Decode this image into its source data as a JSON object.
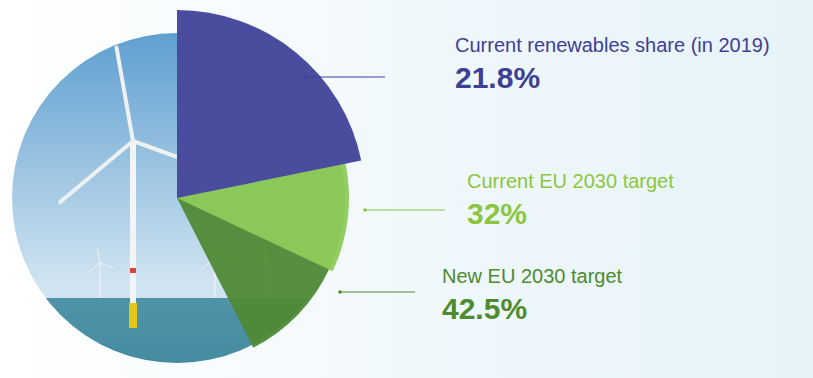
{
  "chart_data": {
    "type": "pie",
    "categories": [
      "Current renewables share (in 2019)",
      "Current EU 2030 target",
      "New EU 2030 target"
    ],
    "values": [
      21.8,
      32,
      42.5
    ],
    "value_labels": [
      "21.8%",
      "32%",
      "42.5%"
    ],
    "colors": [
      "#4a4d9e",
      "#8dcb5b",
      "#4f8a35"
    ],
    "data_labels": true
  }
}
